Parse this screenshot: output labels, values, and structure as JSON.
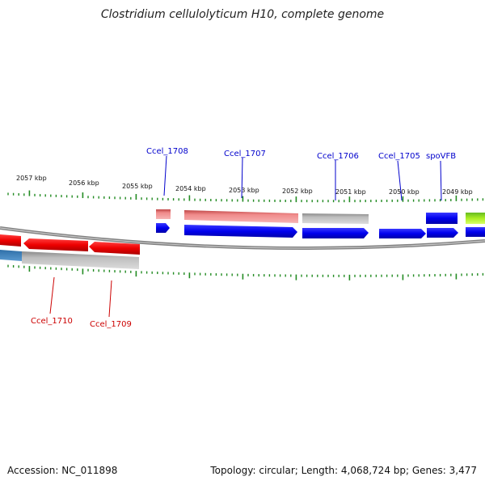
{
  "title": "Clostridium cellulolyticum H10, complete genome",
  "footer": {
    "accession": "Accession: NC_011898",
    "topology": "Topology: circular; Length: 4,068,724 bp; Genes: 3,477"
  },
  "ruler": {
    "labels": [
      "2057 kbp",
      "2056 kbp",
      "2055 kbp",
      "2054 kbp",
      "2053 kbp",
      "2052 kbp",
      "2051 kbp",
      "2050 kbp",
      "2049 kbp"
    ]
  },
  "genes_top": [
    "Ccel_1708",
    "Ccel_1707",
    "Ccel_1706",
    "Ccel_1705",
    "spoVFB"
  ],
  "genes_bottom": [
    "Ccel_1710",
    "Ccel_1709"
  ],
  "colors": {
    "forward": "#0000ee",
    "reverse": "#ee0000",
    "tick": "#228b22",
    "label_top": "#0000cc",
    "label_bottom": "#cc0000"
  }
}
